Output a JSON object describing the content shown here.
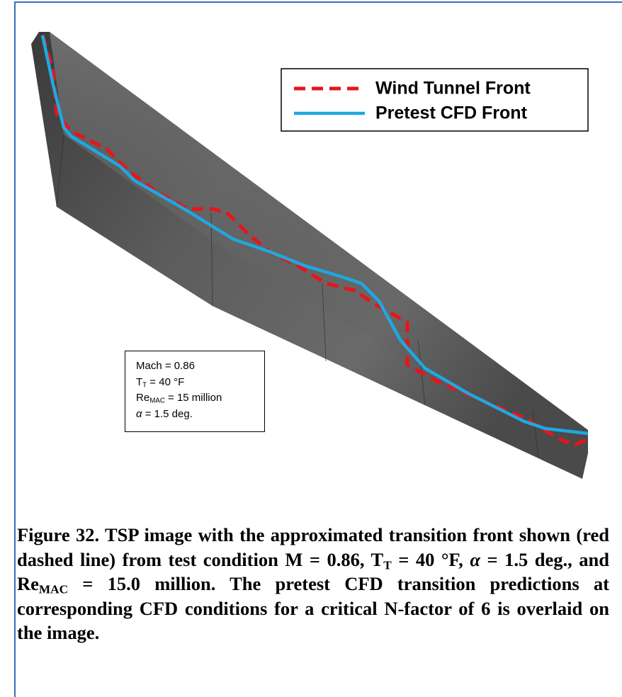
{
  "figure": {
    "legend": [
      "Wind Tunnel Front",
      "Pretest CFD Front"
    ],
    "conditions": [
      [
        {
          "text": "Mach = 0.86"
        }
      ],
      [
        {
          "text": "T"
        },
        {
          "text": "T",
          "sub": true
        },
        {
          "text": " = 40 °F"
        }
      ],
      [
        {
          "text": "Re"
        },
        {
          "text": "MAC",
          "sub": true
        },
        {
          "text": " = 15 million"
        }
      ],
      [
        {
          "text": "α",
          "italic": true
        },
        {
          "text": " = 1.5 deg."
        }
      ]
    ],
    "caption": [
      {
        "text": "Figure 32. TSP image with the approximated transition front shown (red dashed line) from test condition M = 0.86, T"
      },
      {
        "text": "T",
        "sub": true
      },
      {
        "text": " = 40 °F, "
      },
      {
        "text": "α",
        "italic": true
      },
      {
        "text": " = 1.5 deg., and Re"
      },
      {
        "text": "MAC",
        "sub": true
      },
      {
        "text": " = 15.0 million. The pretest CFD transition predictions at corresponding CFD conditions for a critical N-factor of 6 is overlaid on the image."
      }
    ]
  }
}
